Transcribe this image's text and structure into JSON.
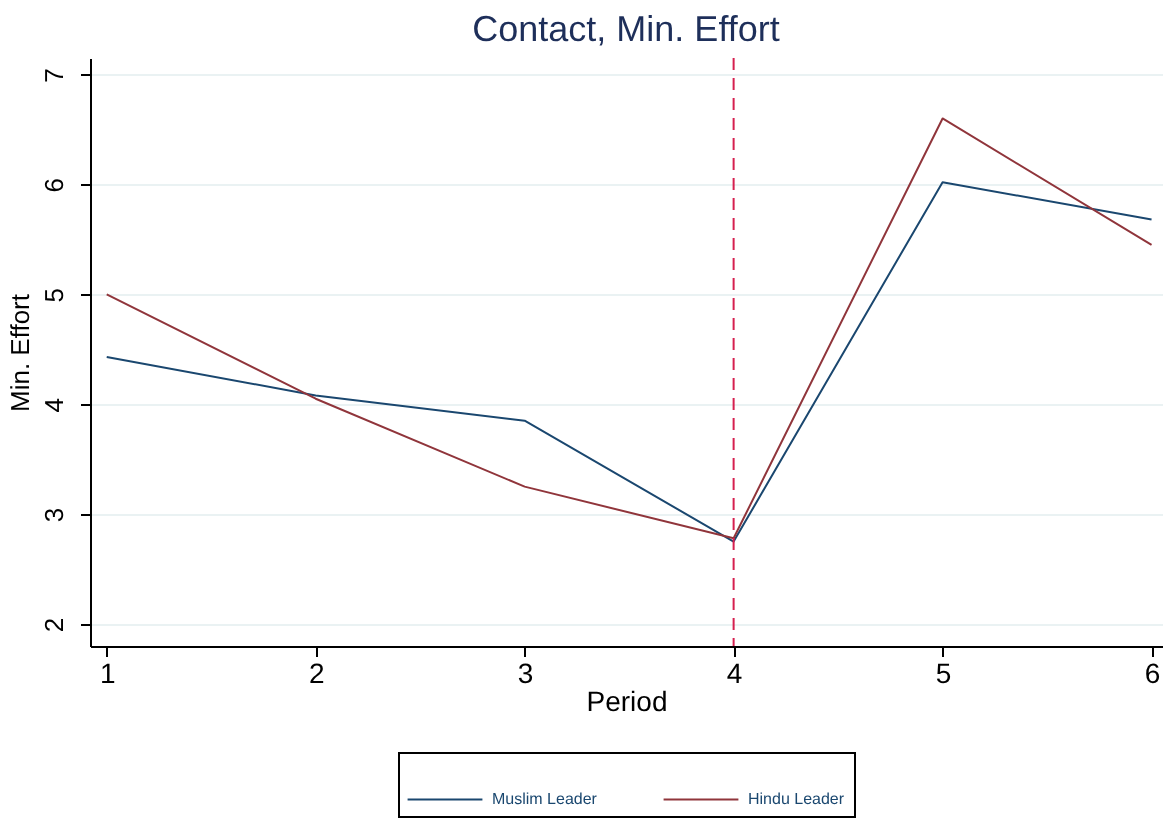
{
  "chart_data": {
    "type": "line",
    "title": "Contact, Min. Effort",
    "xlabel": "Period",
    "ylabel": "Min. Effort",
    "x": [
      1,
      2,
      3,
      4,
      5,
      6
    ],
    "series": [
      {
        "name": "Muslim Leader",
        "color": "#1a476f",
        "values": [
          4.43,
          4.08,
          3.85,
          2.75,
          6.02,
          5.68
        ]
      },
      {
        "name": "Hindu Leader",
        "color": "#90353b",
        "values": [
          5.0,
          4.05,
          3.25,
          2.78,
          6.6,
          5.45
        ]
      }
    ],
    "xlim": [
      0.92,
      6.05
    ],
    "ylim": [
      1.8,
      7.15
    ],
    "xticks": [
      1,
      2,
      3,
      4,
      5,
      6
    ],
    "yticks": [
      2,
      3,
      4,
      5,
      6,
      7
    ],
    "ref_lines": [
      {
        "axis": "x",
        "value": 4,
        "color": "#d6204f",
        "line_style": "dashed"
      }
    ],
    "grid": "y",
    "legend": "bottom",
    "marker": "none",
    "line_style": "solid"
  }
}
